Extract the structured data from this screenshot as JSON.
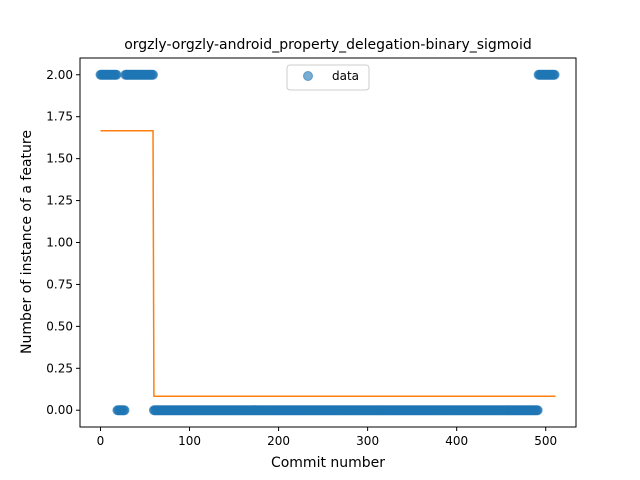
{
  "chart_data": {
    "type": "scatter",
    "title": "orgzly-orgzly-android_property_delegation-binary_sigmoid",
    "xlabel": "Commit number",
    "ylabel": "Number of instance of a feature",
    "xlim": [
      -23,
      534
    ],
    "ylim": [
      -0.1,
      2.1
    ],
    "x_ticks": [
      0,
      100,
      200,
      300,
      400,
      500
    ],
    "y_ticks": [
      0.0,
      0.25,
      0.5,
      0.75,
      1.0,
      1.25,
      1.5,
      1.75,
      2.0
    ],
    "y_tick_labels": [
      "0.00",
      "0.25",
      "0.50",
      "0.75",
      "1.00",
      "1.25",
      "1.50",
      "1.75",
      "2.00"
    ],
    "legend_position": "upper-center",
    "grid": false,
    "series": [
      {
        "name": "data",
        "kind": "scatter",
        "color": "#1f77b4",
        "segments": [
          {
            "x_start": 0,
            "x_end": 19,
            "y": 2
          },
          {
            "x_start": 19,
            "x_end": 28,
            "y": 0
          },
          {
            "x_start": 28,
            "x_end": 60,
            "y": 2
          },
          {
            "x_start": 60,
            "x_end": 492,
            "y": 0
          },
          {
            "x_start": 492,
            "x_end": 511,
            "y": 2
          }
        ]
      },
      {
        "name": "",
        "kind": "line",
        "color": "#ff7f0e",
        "points": [
          [
            0,
            1.666
          ],
          [
            59,
            1.666
          ],
          [
            60,
            0.083
          ],
          [
            511,
            0.083
          ]
        ]
      }
    ]
  }
}
